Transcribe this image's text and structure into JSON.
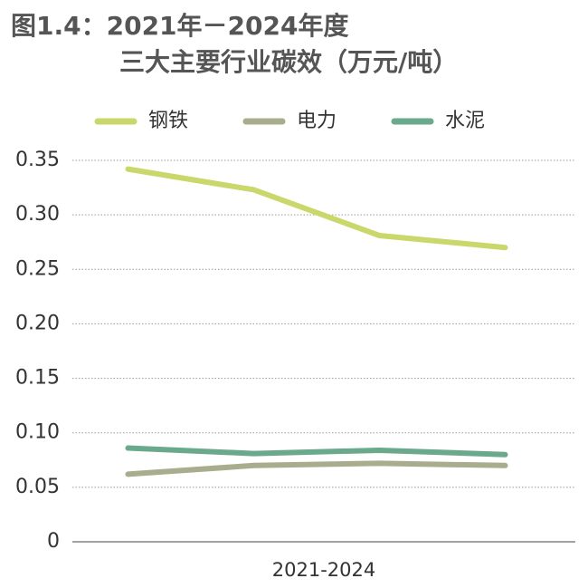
{
  "chart_data": {
    "type": "line",
    "title": [
      "图1.4：2021年－2024年度",
      "三大主要行业碳效（万元/吨）"
    ],
    "x_label": "2021-2024",
    "categories": [
      null,
      null,
      null,
      null
    ],
    "series": [
      {
        "name": "钢铁",
        "color": "#c9d76b",
        "values": [
          0.342,
          0.323,
          0.281,
          0.27
        ]
      },
      {
        "name": "电力",
        "color": "#a9ad8d",
        "values": [
          0.062,
          0.07,
          0.072,
          0.07
        ]
      },
      {
        "name": "水泥",
        "color": "#6aa98b",
        "values": [
          0.086,
          0.081,
          0.084,
          0.08
        ]
      }
    ],
    "ylim": [
      0,
      0.35
    ],
    "yticks": [
      0,
      0.05,
      {
        "value": 0.1,
        "label": "0.10"
      },
      0.15,
      {
        "value": 0.2,
        "label": "0.20"
      },
      0.25,
      {
        "value": 0.3,
        "label": "0.30"
      },
      0.35
    ],
    "grid": true,
    "legend": "top"
  }
}
